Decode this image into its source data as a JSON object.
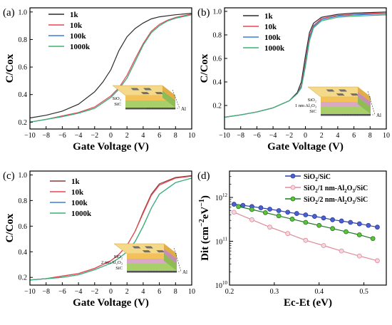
{
  "chart_data": [
    {
      "panel": "(a)",
      "type": "line",
      "xlabel": "Gate Voltage (V)",
      "ylabel": "C/Cox",
      "xlim": [
        -10,
        10
      ],
      "ylim": [
        0.15,
        1.03
      ],
      "xticks": [
        -10,
        -8,
        -6,
        -4,
        -2,
        0,
        2,
        4,
        6,
        8,
        10
      ],
      "yticks": [
        0.2,
        0.4,
        0.6,
        0.8,
        1.0
      ],
      "legend": "top-left",
      "inset": {
        "layers": [
          "SiO₂",
          "SiC"
        ],
        "pointer_label": "Al"
      },
      "series": [
        {
          "name": "1k",
          "color": "#2b2b2b",
          "x": [
            -10,
            -8,
            -6,
            -4,
            -2,
            -1,
            0,
            1,
            2,
            3,
            4,
            5,
            6,
            8,
            10
          ],
          "values": [
            0.23,
            0.25,
            0.28,
            0.33,
            0.42,
            0.49,
            0.58,
            0.72,
            0.82,
            0.88,
            0.92,
            0.95,
            0.965,
            0.98,
            0.99
          ]
        },
        {
          "name": "10k",
          "color": "#e8474e",
          "x": [
            -10,
            -8,
            -6,
            -4,
            -2,
            0,
            1,
            2,
            3,
            4,
            5,
            6,
            7,
            8,
            10
          ],
          "values": [
            0.2,
            0.22,
            0.245,
            0.27,
            0.31,
            0.39,
            0.45,
            0.54,
            0.66,
            0.77,
            0.86,
            0.91,
            0.94,
            0.96,
            0.985
          ]
        },
        {
          "name": "100k",
          "color": "#3a7bdc",
          "x": [
            -10,
            -8,
            -6,
            -4,
            -2,
            0,
            1,
            2,
            3,
            4,
            5,
            6,
            7,
            8,
            10
          ],
          "values": [
            0.2,
            0.22,
            0.24,
            0.265,
            0.3,
            0.38,
            0.44,
            0.52,
            0.64,
            0.76,
            0.85,
            0.9,
            0.935,
            0.955,
            0.98
          ]
        },
        {
          "name": "1000k",
          "color": "#3cb371",
          "x": [
            -10,
            -8,
            -6,
            -4,
            -2,
            0,
            1,
            2,
            3,
            4,
            5,
            6,
            7,
            8,
            10
          ],
          "values": [
            0.2,
            0.22,
            0.24,
            0.265,
            0.3,
            0.38,
            0.44,
            0.52,
            0.64,
            0.76,
            0.85,
            0.9,
            0.935,
            0.955,
            0.98
          ]
        }
      ]
    },
    {
      "panel": "(b)",
      "type": "line",
      "xlabel": "Gate Voltage (V)",
      "ylabel": "C/Cox",
      "xlim": [
        -10,
        10
      ],
      "ylim": [
        0.0,
        1.03
      ],
      "xticks": [
        -10,
        -8,
        -6,
        -4,
        -2,
        0,
        2,
        4,
        6,
        8,
        10
      ],
      "yticks": [
        0.2,
        0.4,
        0.6,
        0.8,
        1.0
      ],
      "legend": "top-left",
      "inset": {
        "layers": [
          "SiO₂",
          "1 nm Al₂O₃",
          "SiC"
        ],
        "pointer_label": "Al"
      },
      "series": [
        {
          "name": "1k",
          "color": "#2b2b2b",
          "x": [
            -10,
            -8,
            -6,
            -4,
            -2,
            -1,
            -0.5,
            0,
            0.5,
            1,
            2,
            4,
            6,
            10
          ],
          "values": [
            0.1,
            0.12,
            0.145,
            0.18,
            0.24,
            0.31,
            0.4,
            0.62,
            0.82,
            0.9,
            0.95,
            0.975,
            0.985,
            0.995
          ]
        },
        {
          "name": "10k",
          "color": "#e8474e",
          "x": [
            -10,
            -8,
            -6,
            -4,
            -2,
            -1,
            -0.5,
            0,
            0.5,
            1,
            2,
            4,
            6,
            10
          ],
          "values": [
            0.1,
            0.12,
            0.145,
            0.18,
            0.24,
            0.3,
            0.37,
            0.57,
            0.79,
            0.88,
            0.94,
            0.965,
            0.975,
            0.99
          ]
        },
        {
          "name": "100k",
          "color": "#3a7bdc",
          "x": [
            -10,
            -8,
            -6,
            -4,
            -2,
            -1,
            -0.5,
            0,
            0.5,
            1,
            2,
            4,
            6,
            10
          ],
          "values": [
            0.1,
            0.12,
            0.145,
            0.18,
            0.24,
            0.3,
            0.36,
            0.55,
            0.77,
            0.87,
            0.93,
            0.96,
            0.97,
            0.98
          ]
        },
        {
          "name": "1000k",
          "color": "#3cb371",
          "x": [
            -10,
            -8,
            -6,
            -4,
            -2,
            -1,
            -0.5,
            0,
            0.5,
            1,
            2,
            4,
            6,
            10
          ],
          "values": [
            0.1,
            0.12,
            0.145,
            0.18,
            0.24,
            0.3,
            0.35,
            0.53,
            0.75,
            0.86,
            0.92,
            0.95,
            0.96,
            0.97
          ]
        }
      ]
    },
    {
      "panel": "(c)",
      "type": "line",
      "xlabel": "Gate Voltage (V)",
      "ylabel": "C/Cox",
      "xlim": [
        -10,
        10
      ],
      "ylim": [
        0.14,
        1.03
      ],
      "xticks": [
        -10,
        -8,
        -6,
        -4,
        -2,
        0,
        2,
        4,
        6,
        8,
        10
      ],
      "yticks": [
        0.2,
        0.4,
        0.6,
        0.8,
        1.0
      ],
      "legend": "top-center",
      "inset": {
        "layers": [
          "SiO₂",
          "2 nm Al₂O₃",
          "SiC"
        ],
        "pointer_label": "Al"
      },
      "series": [
        {
          "name": "1k",
          "color": "#8b3a3a",
          "x": [
            -10,
            -8,
            -6,
            -4,
            -2,
            0,
            1,
            2,
            3,
            4,
            5,
            6,
            8,
            10
          ],
          "values": [
            0.18,
            0.19,
            0.21,
            0.23,
            0.27,
            0.33,
            0.38,
            0.45,
            0.56,
            0.71,
            0.85,
            0.93,
            0.98,
            0.995
          ]
        },
        {
          "name": "10k",
          "color": "#e8474e",
          "x": [
            -10,
            -8,
            -6,
            -4,
            -2,
            0,
            1,
            2,
            3,
            4,
            5,
            6,
            8,
            10
          ],
          "values": [
            0.18,
            0.19,
            0.21,
            0.23,
            0.27,
            0.33,
            0.38,
            0.45,
            0.56,
            0.7,
            0.84,
            0.92,
            0.975,
            0.99
          ]
        },
        {
          "name": "100k",
          "color": "#3a7bdc",
          "x": [
            -10,
            -8,
            -6,
            -4,
            -2,
            0,
            1,
            2,
            3,
            4,
            5,
            6,
            8,
            10
          ],
          "values": [
            0.18,
            0.19,
            0.2,
            0.22,
            0.26,
            0.31,
            0.35,
            0.4,
            0.48,
            0.6,
            0.74,
            0.85,
            0.94,
            0.975
          ]
        },
        {
          "name": "1000k",
          "color": "#3cb371",
          "x": [
            -10,
            -8,
            -6,
            -4,
            -2,
            0,
            1,
            2,
            3,
            4,
            5,
            6,
            8,
            10
          ],
          "values": [
            0.18,
            0.19,
            0.2,
            0.22,
            0.26,
            0.31,
            0.35,
            0.4,
            0.48,
            0.6,
            0.74,
            0.85,
            0.94,
            0.975
          ]
        }
      ]
    },
    {
      "panel": "(d)",
      "type": "line",
      "xlabel": "Ec-Et (eV)",
      "ylabel": "Dit (cm⁻²eV⁻¹)",
      "ylabel_parts": [
        "Dit (cm",
        "−2",
        "eV",
        "−1",
        ")"
      ],
      "xlim": [
        0.2,
        0.55
      ],
      "ylim": [
        10000000000.0,
        4000000000000.0
      ],
      "yscale": "log",
      "xticks": [
        0.2,
        0.3,
        0.4,
        0.5
      ],
      "xtick_labels": [
        "0.2",
        "0.3",
        "0.4",
        "0.5"
      ],
      "yticks": [
        10000000000.0,
        100000000000.0,
        1000000000000.0
      ],
      "ytick_labels": [
        [
          "10",
          "10"
        ],
        [
          "10",
          "11"
        ],
        [
          "10",
          "12"
        ]
      ],
      "legend": "top-right",
      "series": [
        {
          "name": "SiO2/SiC",
          "label_parts": [
            "SiO",
            "2",
            "/SiC"
          ],
          "color": "#2f3f9e",
          "marker_fill": "#4a5fd0",
          "x": [
            0.21,
            0.23,
            0.25,
            0.27,
            0.29,
            0.31,
            0.33,
            0.35,
            0.37,
            0.39,
            0.41,
            0.43,
            0.45,
            0.47,
            0.49,
            0.51,
            0.53
          ],
          "values": [
            700000000000.0,
            660000000000.0,
            620000000000.0,
            580000000000.0,
            540000000000.0,
            500000000000.0,
            460000000000.0,
            430000000000.0,
            400000000000.0,
            370000000000.0,
            340000000000.0,
            310000000000.0,
            290000000000.0,
            270000000000.0,
            250000000000.0,
            230000000000.0,
            210000000000.0
          ]
        },
        {
          "name": "SiO2/1 nm-Al2O3/SiC",
          "label_parts": [
            "SiO",
            "2",
            "/1 nm-Al",
            "2",
            "O",
            "3",
            "/SiC"
          ],
          "color": "#e08a9a",
          "marker_fill": "#f2d8dd",
          "x": [
            0.21,
            0.25,
            0.29,
            0.33,
            0.37,
            0.41,
            0.45,
            0.49,
            0.53
          ],
          "values": [
            460000000000.0,
            310000000000.0,
            210000000000.0,
            150000000000.0,
            105000000000.0,
            80000000000.0,
            60000000000.0,
            46000000000.0,
            36000000000.0
          ]
        },
        {
          "name": "SiO2/2 nm-Al2O3/SiC",
          "label_parts": [
            "SiO",
            "2",
            "/2 nm-Al",
            "2",
            "O",
            "3",
            "/SiC"
          ],
          "color": "#1e7a1e",
          "marker_fill": "#5fc03c",
          "x": [
            0.22,
            0.25,
            0.28,
            0.31,
            0.34,
            0.37,
            0.4,
            0.43,
            0.46,
            0.49,
            0.52
          ],
          "values": [
            620000000000.0,
            530000000000.0,
            450000000000.0,
            380000000000.0,
            320000000000.0,
            270000000000.0,
            230000000000.0,
            195000000000.0,
            165000000000.0,
            140000000000.0,
            115000000000.0
          ]
        }
      ]
    }
  ]
}
